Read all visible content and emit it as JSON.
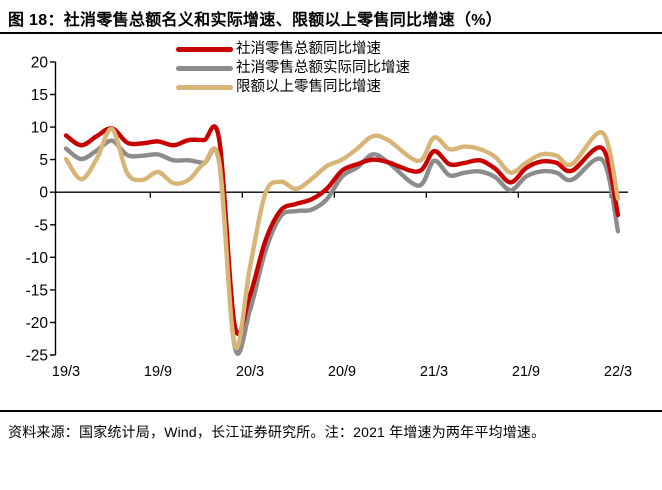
{
  "header": {
    "title": "图 18：社消零售总额名义和实际增速、限额以上零售同比增速（%）"
  },
  "legend": {
    "position": "top-center",
    "items": [
      {
        "label": "社消零售总额同比增速"
      },
      {
        "label": "社消零售总额实际同比增速"
      },
      {
        "label": "限额以上零售同比增速"
      }
    ]
  },
  "footer": {
    "note": "资料来源：国家统计局，Wind，长江证券研究所。注：2021 年增速为两年平均增速。"
  },
  "chart_data": {
    "type": "line",
    "title": "社消零售总额名义和实际增速、限额以上零售同比增速（%）",
    "xlabel": "",
    "ylabel": "",
    "ylim": [
      -25,
      20
    ],
    "y_ticks": [
      20,
      15,
      10,
      5,
      0,
      -5,
      -10,
      -15,
      -20,
      -25
    ],
    "grid": false,
    "smoothed_lines": true,
    "legend_position": "top",
    "x": [
      "19/3",
      "19/4",
      "19/5",
      "19/6",
      "19/7",
      "19/8",
      "19/9",
      "19/10",
      "19/11",
      "19/12",
      "20/1",
      "20/2",
      "20/3",
      "20/4",
      "20/5",
      "20/6",
      "20/7",
      "20/8",
      "20/9",
      "20/10",
      "20/11",
      "20/12",
      "21/1",
      "21/2",
      "21/3",
      "21/4",
      "21/5",
      "21/6",
      "21/7",
      "21/8",
      "21/9",
      "21/10",
      "21/11",
      "21/12",
      "22/1",
      "22/2",
      "22/3"
    ],
    "x_axis_tick_labels": [
      "19/3",
      "19/9",
      "20/3",
      "20/9",
      "21/3",
      "21/9",
      "22/3"
    ],
    "axis_color": "#000000",
    "series": [
      {
        "name": "社消零售总额同比增速",
        "color": "#c80000",
        "values": [
          8.7,
          7.2,
          8.6,
          9.8,
          7.6,
          7.5,
          7.8,
          7.2,
          8.0,
          8.0,
          8.0,
          -20.5,
          -15.8,
          -7.5,
          -2.8,
          -1.8,
          -1.1,
          0.5,
          3.3,
          4.3,
          5.0,
          4.6,
          null,
          3.2,
          6.3,
          4.3,
          4.5,
          4.9,
          3.6,
          1.5,
          3.7,
          4.7,
          4.5,
          3.3,
          null,
          6.7,
          -3.5
        ]
      },
      {
        "name": "社消零售总额实际同比增速",
        "color": "#8c8c8c",
        "values": [
          6.7,
          5.1,
          6.4,
          7.9,
          5.7,
          5.6,
          5.8,
          4.9,
          4.9,
          4.5,
          4.5,
          -23.7,
          -18.1,
          -9.1,
          -3.7,
          -2.9,
          -2.7,
          -1.1,
          2.4,
          3.8,
          5.8,
          4.6,
          null,
          1.0,
          4.8,
          2.6,
          3.0,
          3.2,
          2.3,
          0.3,
          2.4,
          3.2,
          3.0,
          1.9,
          null,
          4.9,
          -6.0
        ]
      },
      {
        "name": "限额以上零售同比增速",
        "color": "#d8b577",
        "values": [
          5.1,
          2.0,
          5.1,
          9.7,
          2.9,
          1.9,
          3.1,
          1.4,
          1.9,
          4.4,
          4.6,
          -23.5,
          -11.5,
          -0.2,
          1.6,
          0.5,
          2.0,
          4.0,
          5.0,
          6.7,
          8.6,
          8.0,
          null,
          4.8,
          8.4,
          6.6,
          7.0,
          6.6,
          5.4,
          3.0,
          4.5,
          5.8,
          5.6,
          4.3,
          null,
          9.1,
          -1.0
        ]
      }
    ]
  }
}
